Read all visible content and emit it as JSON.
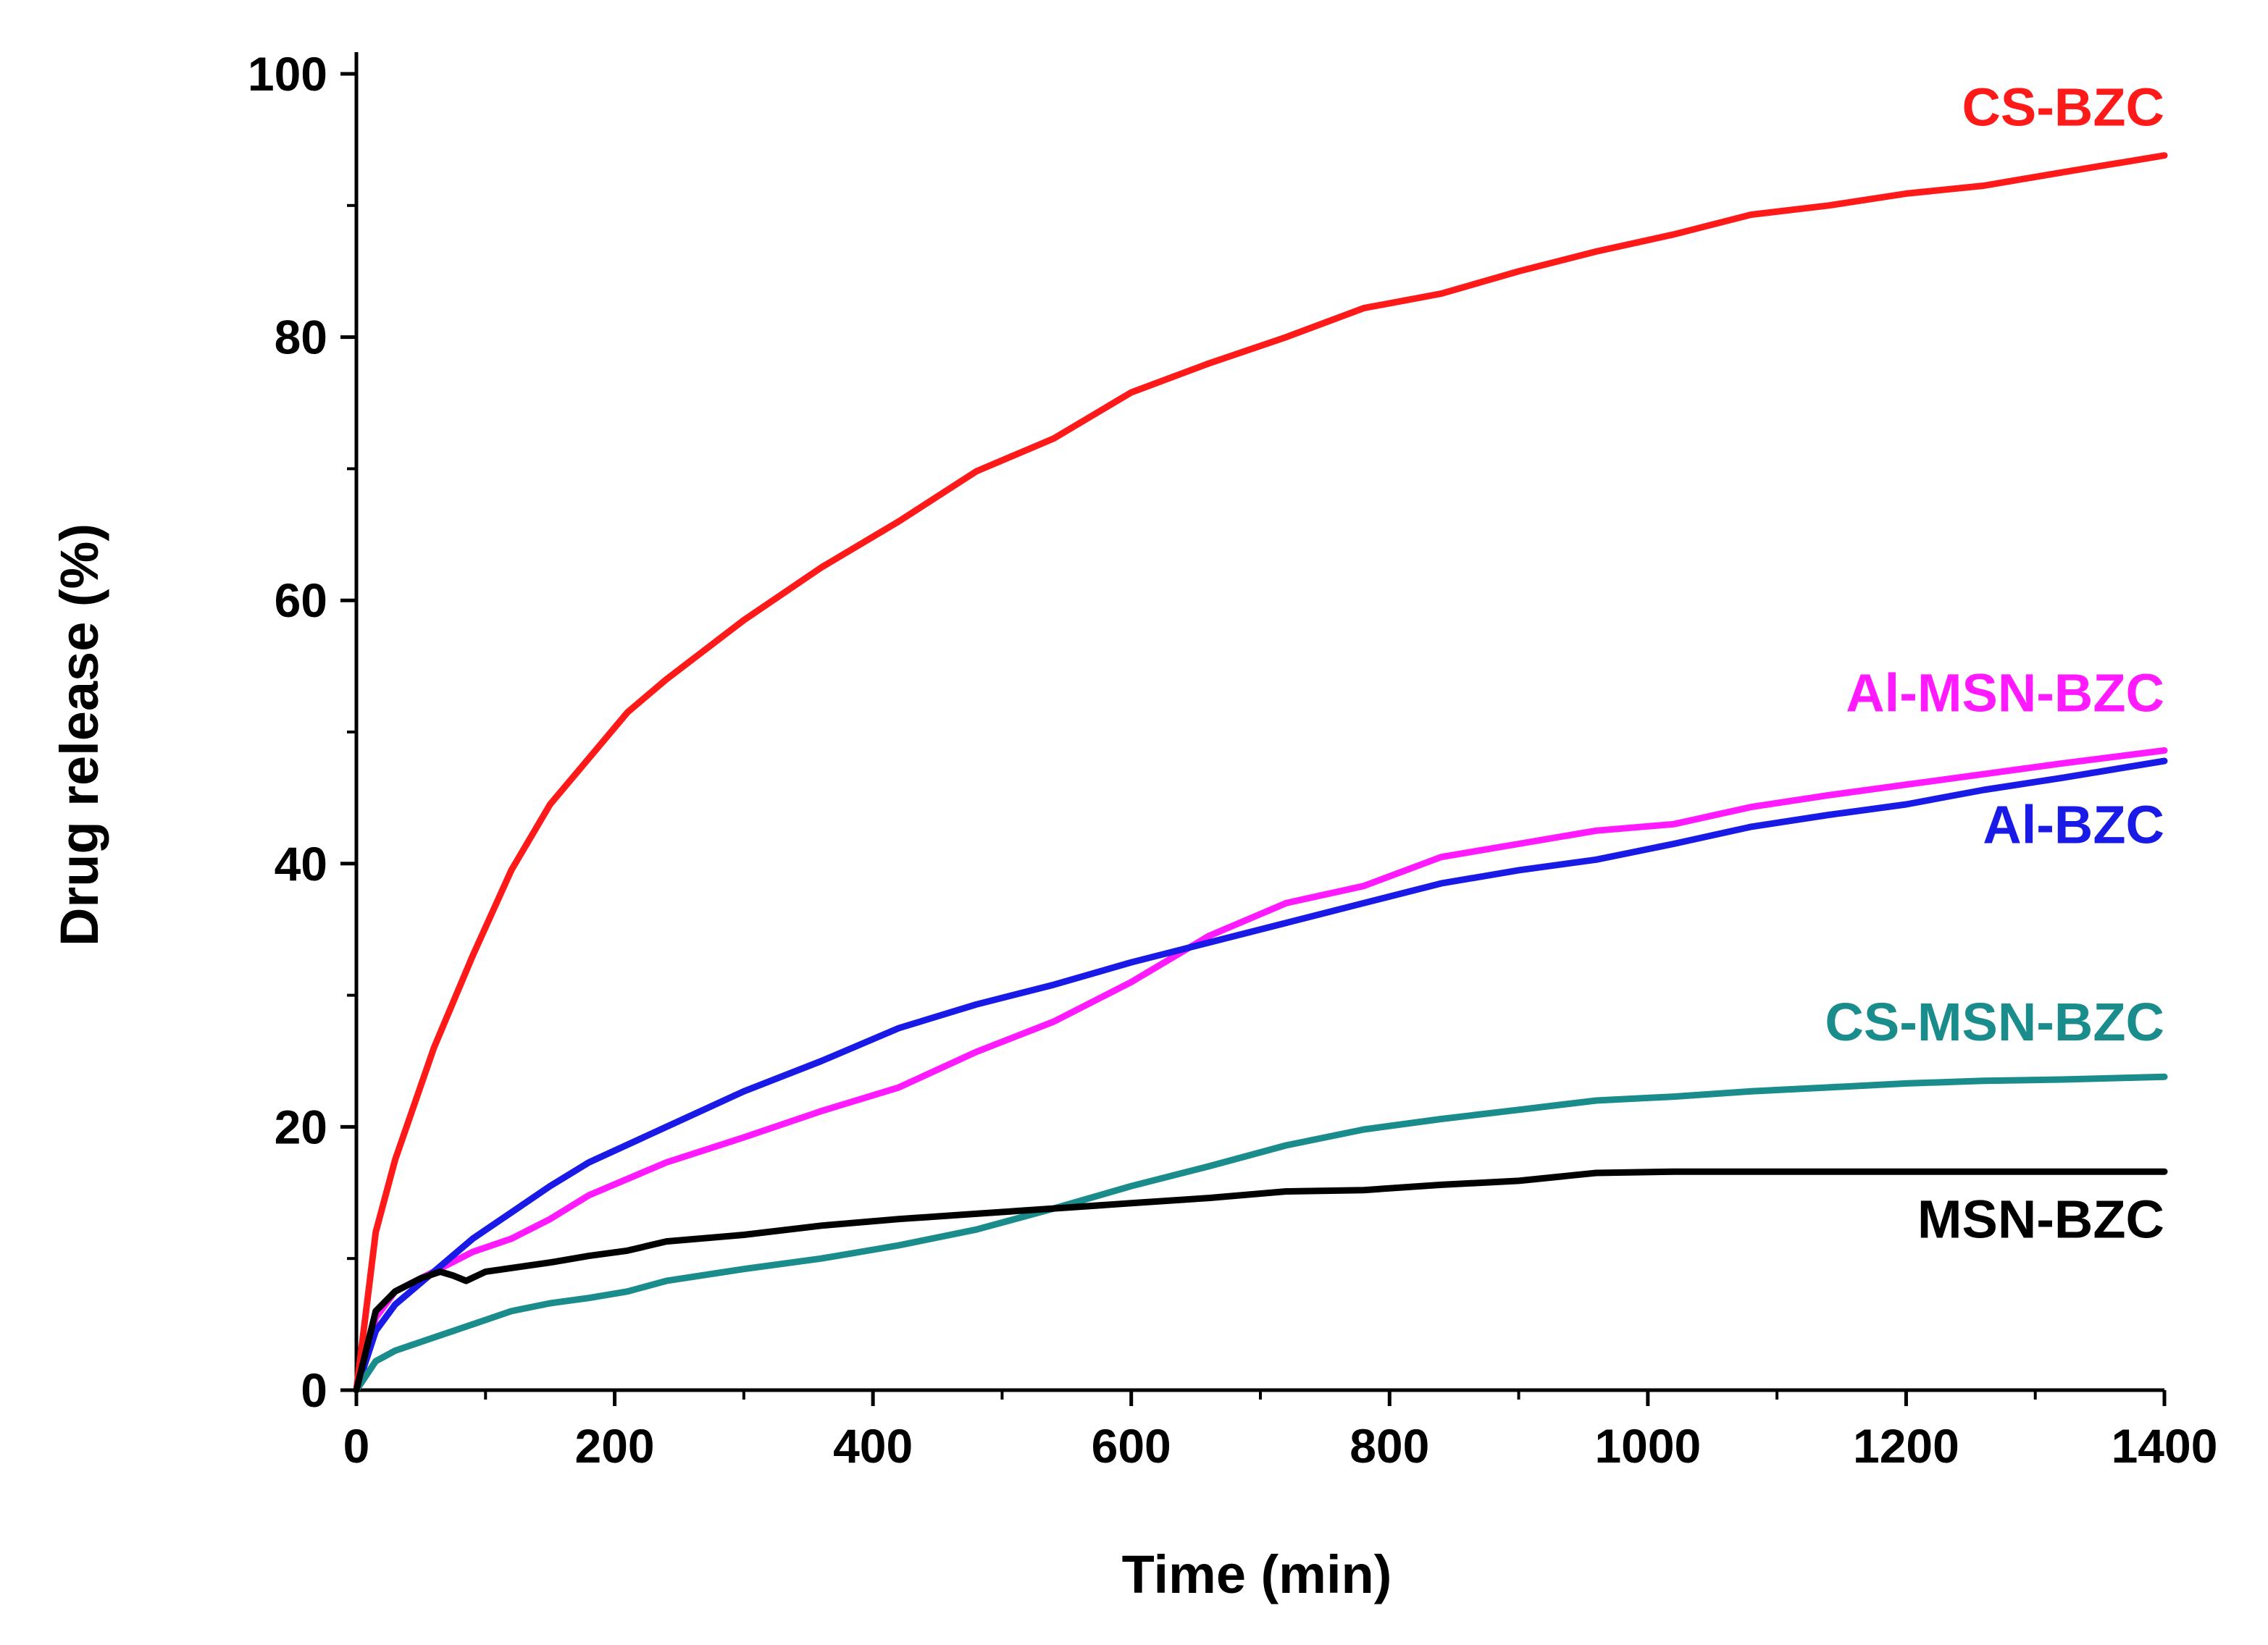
{
  "chart_data": {
    "type": "line",
    "title": "",
    "xlabel": "Time (min)",
    "ylabel": "Drug release (%)",
    "xlim": [
      0,
      1400
    ],
    "ylim": [
      0,
      100
    ],
    "xticks": [
      0,
      200,
      400,
      600,
      800,
      1000,
      1200,
      1400
    ],
    "yticks": [
      0,
      20,
      40,
      60,
      80,
      100
    ],
    "xtick_labels": [
      "0",
      "200",
      "400",
      "600",
      "800",
      "1000",
      "1200",
      "1400"
    ],
    "ytick_labels": [
      "0",
      "20",
      "40",
      "60",
      "80",
      "100"
    ],
    "grid": false,
    "legend": "inline labels at right end of each curve",
    "series": [
      {
        "name": "CS-BZC",
        "color": "#ff1a1a",
        "x": [
          0,
          15,
          30,
          60,
          90,
          120,
          150,
          180,
          210,
          240,
          300,
          360,
          420,
          480,
          540,
          600,
          660,
          720,
          780,
          840,
          900,
          960,
          1020,
          1080,
          1140,
          1200,
          1260,
          1320,
          1400
        ],
        "y": [
          0,
          12,
          17.5,
          26,
          33,
          39.5,
          44.5,
          48,
          51.5,
          54,
          58.5,
          62.5,
          66,
          69.8,
          72.3,
          75.8,
          78,
          80,
          82.2,
          83.3,
          85,
          86.5,
          87.8,
          89.3,
          90,
          90.9,
          91.5,
          92.5,
          93.8
        ]
      },
      {
        "name": "Al-MSN-BZC",
        "color": "#ff1aff",
        "x": [
          0,
          15,
          30,
          60,
          90,
          120,
          150,
          180,
          240,
          300,
          360,
          420,
          480,
          540,
          600,
          660,
          720,
          780,
          840,
          900,
          960,
          1020,
          1080,
          1140,
          1200,
          1260,
          1320,
          1400
        ],
        "y": [
          0,
          5.5,
          7.5,
          9,
          10.5,
          11.5,
          13,
          14.8,
          17.3,
          19.2,
          21.2,
          23,
          25.7,
          28,
          31,
          34.5,
          37,
          38.3,
          40.5,
          41.5,
          42.5,
          43,
          44.3,
          45.2,
          46,
          46.8,
          47.6,
          48.6
        ]
      },
      {
        "name": "Al-BZC",
        "color": "#1a1ae6",
        "x": [
          0,
          15,
          30,
          60,
          90,
          120,
          150,
          180,
          240,
          300,
          360,
          420,
          480,
          540,
          600,
          660,
          720,
          780,
          840,
          900,
          960,
          1020,
          1080,
          1140,
          1200,
          1260,
          1320,
          1400
        ],
        "y": [
          0,
          4.5,
          6.5,
          9,
          11.5,
          13.5,
          15.5,
          17.3,
          20,
          22.7,
          25,
          27.5,
          29.3,
          30.8,
          32.5,
          34,
          35.5,
          37,
          38.5,
          39.5,
          40.3,
          41.5,
          42.8,
          43.7,
          44.5,
          45.6,
          46.5,
          47.8
        ]
      },
      {
        "name": "CS-MSN-BZC",
        "color": "#1a8c8c",
        "x": [
          0,
          15,
          30,
          60,
          90,
          120,
          150,
          180,
          210,
          240,
          300,
          360,
          420,
          480,
          540,
          600,
          660,
          720,
          780,
          840,
          900,
          960,
          1020,
          1080,
          1140,
          1200,
          1260,
          1320,
          1400
        ],
        "y": [
          0,
          2.2,
          3,
          4,
          5,
          6,
          6.6,
          7,
          7.5,
          8.3,
          9.2,
          10,
          11,
          12.2,
          13.8,
          15.5,
          17,
          18.6,
          19.8,
          20.6,
          21.3,
          22,
          22.3,
          22.7,
          23,
          23.3,
          23.5,
          23.6,
          23.8
        ]
      },
      {
        "name": "MSN-BZC",
        "color": "#000000",
        "x": [
          0,
          15,
          30,
          50,
          65,
          75,
          85,
          100,
          150,
          180,
          210,
          240,
          300,
          360,
          420,
          480,
          540,
          600,
          660,
          720,
          780,
          840,
          900,
          960,
          1020,
          1080,
          1140,
          1200,
          1300,
          1400
        ],
        "y": [
          0,
          6,
          7.5,
          8.5,
          9,
          8.7,
          8.3,
          9,
          9.7,
          10.2,
          10.6,
          11.3,
          11.8,
          12.5,
          13,
          13.4,
          13.8,
          14.2,
          14.6,
          15.1,
          15.2,
          15.6,
          15.9,
          16.5,
          16.6,
          16.6,
          16.6,
          16.6,
          16.6,
          16.6
        ]
      }
    ],
    "labels": [
      {
        "series": "CS-BZC",
        "text": "CS-BZC",
        "x_anchor": 1400,
        "y_anchor": 97.5
      },
      {
        "series": "Al-MSN-BZC",
        "text": "Al-MSN-BZC",
        "x_anchor": 1400,
        "y_anchor": 53
      },
      {
        "series": "Al-BZC",
        "text": "Al-BZC",
        "x_anchor": 1400,
        "y_anchor": 43
      },
      {
        "series": "CS-MSN-BZC",
        "text": "CS-MSN-BZC",
        "x_anchor": 1400,
        "y_anchor": 28
      },
      {
        "series": "MSN-BZC",
        "text": "MSN-BZC",
        "x_anchor": 1400,
        "y_anchor": 13
      }
    ]
  }
}
